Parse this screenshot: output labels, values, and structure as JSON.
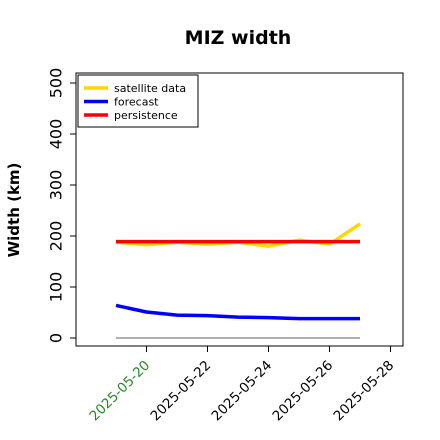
{
  "chart_data": {
    "type": "line",
    "title": "MIZ width",
    "xlabel": "",
    "ylabel": "Width (km)",
    "ylim": [
      0,
      500
    ],
    "yticks": [
      0,
      100,
      200,
      300,
      400,
      500
    ],
    "xlim": [
      0,
      8.2
    ],
    "xticks": [
      {
        "label": "2025-05-20",
        "x": 1,
        "color": "#228B22"
      },
      {
        "label": "2025-05-22",
        "x": 3,
        "color": "#000000"
      },
      {
        "label": "2025-05-24",
        "x": 5,
        "color": "#000000"
      },
      {
        "label": "2025-05-26",
        "x": 7,
        "color": "#000000"
      },
      {
        "label": "2025-05-28",
        "x": 9,
        "color": "#000000"
      }
    ],
    "x": [
      0,
      1,
      2,
      3,
      4,
      5,
      6,
      7,
      8
    ],
    "series": [
      {
        "name": "satellite data",
        "color": "#FFD700",
        "values": [
          188,
          183,
          188,
          184,
          188,
          180,
          192,
          184,
          224
        ]
      },
      {
        "name": "forecast",
        "color": "#0000FF",
        "values": [
          64,
          51,
          45,
          44,
          41,
          40,
          38,
          38,
          38
        ]
      },
      {
        "name": "persistence",
        "color": "#FF0000",
        "values": [
          189,
          189,
          189,
          189,
          189,
          189,
          189,
          189,
          189
        ]
      }
    ],
    "baseline": {
      "value": 0,
      "color": "#808080"
    },
    "legend_position": "top-left"
  }
}
